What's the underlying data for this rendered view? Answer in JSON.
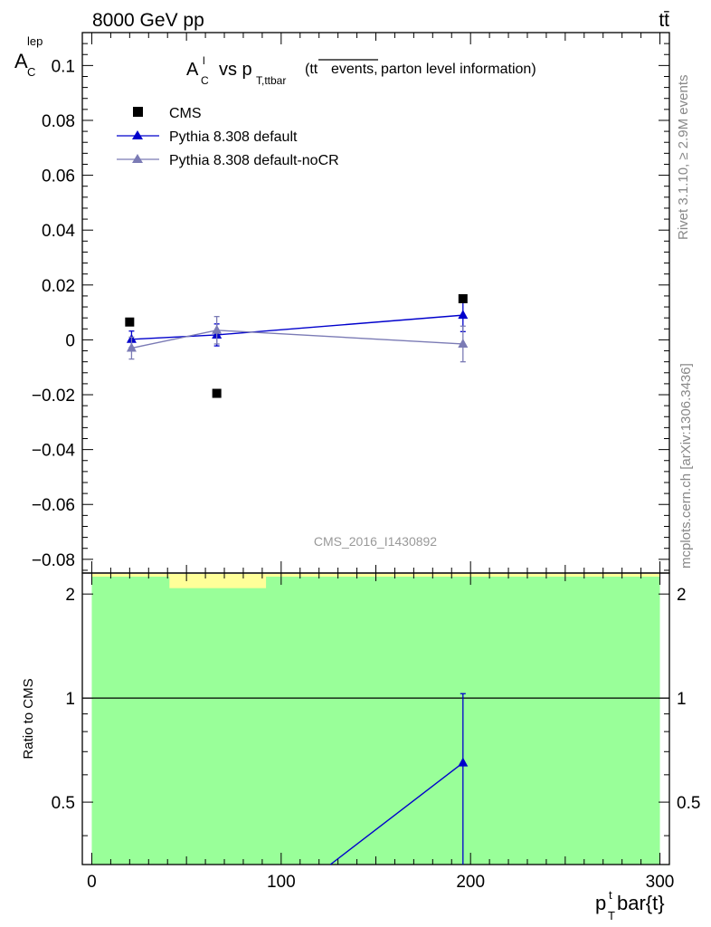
{
  "header": {
    "left": "8000 GeV pp",
    "right": "tt̄"
  },
  "side_labels": {
    "rivet": "Rivet 3.1.10, ≥ 2.9M events",
    "mcplots": "mcplots.cern.ch [arXiv:1306.3436]"
  },
  "chart_data": [
    {
      "type": "scatter",
      "panel": "main",
      "title": "A_C^l vs p_T,ttbar (tt̄ events, parton level information)",
      "title_parts": {
        "main": "A",
        "main_sub": "C",
        "main_sup": "l",
        "vs": "vs p",
        "vs_sub": "T,ttbar",
        "paren_open": "(tt",
        "overlined": "events,",
        "rest": "parton level information)"
      },
      "ylabel": "A",
      "ylabel_sub": "C",
      "ylabel_sup": "lep",
      "watermark": "CMS_2016_I1430892",
      "ylim": [
        -0.085,
        0.112
      ],
      "y_ticks": [
        -0.08,
        -0.06,
        -0.04,
        -0.02,
        0,
        0.02,
        0.04,
        0.06,
        0.08,
        0.1
      ],
      "y_tick_labels": [
        "−0.08",
        "−0.06",
        "−0.04",
        "−0.02",
        "0",
        "0.02",
        "0.04",
        "0.06",
        "0.08",
        "0.1"
      ],
      "legend_position": "top-left",
      "series": [
        {
          "name": "CMS",
          "marker": "square",
          "color": "#000000",
          "x": [
            20,
            66,
            196
          ],
          "y": [
            0.0065,
            -0.0195,
            0.015
          ]
        },
        {
          "name": "Pythia 8.308 default",
          "marker": "triangle",
          "color": "#0000cc",
          "x": [
            21,
            66,
            196
          ],
          "y": [
            0.0002,
            0.0018,
            0.009
          ],
          "yerr": [
            0.003,
            0.004,
            0.006
          ]
        },
        {
          "name": "Pythia 8.308 default-noCR",
          "marker": "triangle",
          "color": "#7b7bb5",
          "x": [
            21,
            66,
            196
          ],
          "y": [
            -0.003,
            0.0035,
            -0.0015
          ],
          "yerr": [
            0.004,
            0.005,
            0.0065
          ]
        }
      ]
    },
    {
      "type": "line",
      "panel": "ratio",
      "ylabel": "Ratio to CMS",
      "xlabel": "p",
      "xlabel_sub": "T",
      "xlabel_sup": "t",
      "xlabel_rest": "bar{t}",
      "xlim": [
        -5,
        305
      ],
      "ylim": [
        0.33,
        2.3
      ],
      "x_ticks": [
        0,
        100,
        200,
        300
      ],
      "y_ticks": [
        0.5,
        1,
        2
      ],
      "y_tick_labels": [
        "0.5",
        "1",
        "2"
      ],
      "bands": {
        "green": {
          "color": "#99ff99",
          "x": [
            0,
            300
          ],
          "y": [
            0.33,
            2.3
          ]
        },
        "yellow": {
          "color": "#ffff99",
          "x": [
            41,
            92
          ],
          "y": [
            2.08,
            2.3
          ]
        }
      },
      "series": [
        {
          "name": "Pythia 8.308 default",
          "color": "#0000cc",
          "x": [
            126,
            196
          ],
          "y": [
            0.33,
            0.65
          ],
          "err_point": {
            "x": 196,
            "low": 0.33,
            "high": 1.03
          }
        }
      ]
    }
  ]
}
